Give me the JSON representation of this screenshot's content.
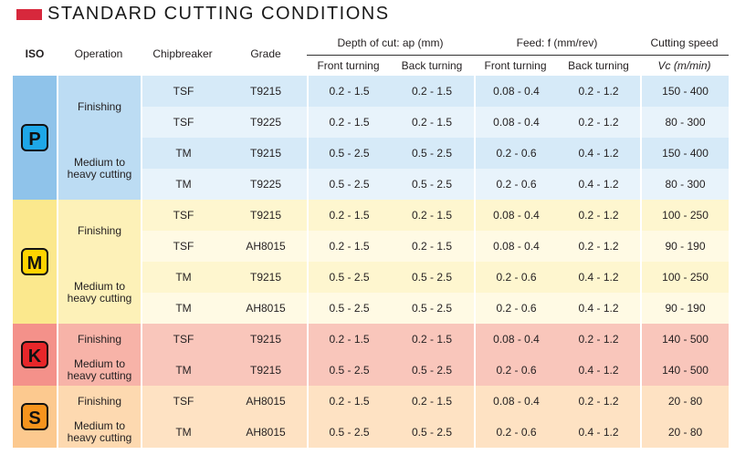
{
  "title": "STANDARD CUTTING CONDITIONS",
  "colors": {
    "accent": "#d7283c",
    "P": {
      "iso": "#8fc3ea",
      "op": "#bcdcf3",
      "r1": "#d6eaf8",
      "r2": "#e8f3fb",
      "badge": "#1ea7e8"
    },
    "M": {
      "iso": "#fbe88d",
      "op": "#fdf1b8",
      "r1": "#fef6cf",
      "r2": "#fffae4",
      "badge": "#ffd400"
    },
    "K": {
      "iso": "#f4918a",
      "op": "#f7b3a8",
      "r1": "#f9c6bb",
      "r2": "#fde3dc",
      "badge": "#e8262a"
    },
    "S": {
      "iso": "#fcc98f",
      "op": "#fdd9b0",
      "r1": "#fee2c3",
      "r2": "#fff0df",
      "badge": "#f7941d"
    }
  },
  "header": {
    "iso": "ISO",
    "operation": "Operation",
    "chipbreaker": "Chipbreaker",
    "grade": "Grade",
    "depth": "Depth of cut: ap (mm)",
    "feed": "Feed: f (mm/rev)",
    "speed": "Cutting speed",
    "front": "Front turning",
    "back": "Back turning",
    "front2": "Front turning",
    "back2": "Back turning",
    "speed_unit": "Vc (m/min)"
  },
  "groups": [
    {
      "iso": "P",
      "ops": [
        {
          "name": "Finishing",
          "rows": [
            {
              "cb": "TSF",
              "grade": "T9215",
              "df": "0.2 - 1.5",
              "db": "0.2 - 1.5",
              "ff": "0.08 - 0.4",
              "fb": "0.2 - 1.2",
              "vc": "150 - 400"
            },
            {
              "cb": "TSF",
              "grade": "T9225",
              "df": "0.2 - 1.5",
              "db": "0.2 - 1.5",
              "ff": "0.08 - 0.4",
              "fb": "0.2 - 1.2",
              "vc": "80 - 300"
            }
          ]
        },
        {
          "name": "Medium to heavy cutting",
          "rows": [
            {
              "cb": "TM",
              "grade": "T9215",
              "df": "0.5 - 2.5",
              "db": "0.5 - 2.5",
              "ff": "0.2 - 0.6",
              "fb": "0.4 - 1.2",
              "vc": "150 - 400"
            },
            {
              "cb": "TM",
              "grade": "T9225",
              "df": "0.5 - 2.5",
              "db": "0.5 - 2.5",
              "ff": "0.2 - 0.6",
              "fb": "0.4 - 1.2",
              "vc": "80 - 300"
            }
          ]
        }
      ]
    },
    {
      "iso": "M",
      "ops": [
        {
          "name": "Finishing",
          "rows": [
            {
              "cb": "TSF",
              "grade": "T9215",
              "df": "0.2 - 1.5",
              "db": "0.2 - 1.5",
              "ff": "0.08 - 0.4",
              "fb": "0.2 - 1.2",
              "vc": "100 - 250"
            },
            {
              "cb": "TSF",
              "grade": "AH8015",
              "df": "0.2 - 1.5",
              "db": "0.2 - 1.5",
              "ff": "0.08 - 0.4",
              "fb": "0.2 - 1.2",
              "vc": "90 - 190"
            }
          ]
        },
        {
          "name": "Medium to heavy cutting",
          "rows": [
            {
              "cb": "TM",
              "grade": "T9215",
              "df": "0.5 - 2.5",
              "db": "0.5 - 2.5",
              "ff": "0.2 - 0.6",
              "fb": "0.4 - 1.2",
              "vc": "100 - 250"
            },
            {
              "cb": "TM",
              "grade": "AH8015",
              "df": "0.5 - 2.5",
              "db": "0.5 - 2.5",
              "ff": "0.2 - 0.6",
              "fb": "0.4 - 1.2",
              "vc": "90 - 190"
            }
          ]
        }
      ]
    },
    {
      "iso": "K",
      "ops": [
        {
          "name": "Finishing",
          "rows": [
            {
              "cb": "TSF",
              "grade": "T9215",
              "df": "0.2 - 1.5",
              "db": "0.2 - 1.5",
              "ff": "0.08 - 0.4",
              "fb": "0.2 - 1.2",
              "vc": "140 - 500"
            }
          ]
        },
        {
          "name": "Medium to heavy cutting",
          "rows": [
            {
              "cb": "TM",
              "grade": "T9215",
              "df": "0.5 - 2.5",
              "db": "0.5 - 2.5",
              "ff": "0.2 - 0.6",
              "fb": "0.4 - 1.2",
              "vc": "140 - 500"
            }
          ]
        }
      ]
    },
    {
      "iso": "S",
      "ops": [
        {
          "name": "Finishing",
          "rows": [
            {
              "cb": "TSF",
              "grade": "AH8015",
              "df": "0.2 - 1.5",
              "db": "0.2 - 1.5",
              "ff": "0.08 - 0.4",
              "fb": "0.2 - 1.2",
              "vc": "20 - 80"
            }
          ]
        },
        {
          "name": "Medium to heavy cutting",
          "rows": [
            {
              "cb": "TM",
              "grade": "AH8015",
              "df": "0.5 - 2.5",
              "db": "0.5 - 2.5",
              "ff": "0.2 - 0.6",
              "fb": "0.4 - 1.2",
              "vc": "20 - 80"
            }
          ]
        }
      ]
    }
  ]
}
